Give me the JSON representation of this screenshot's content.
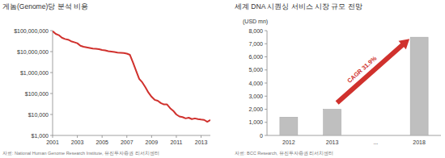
{
  "chart_data": [
    {
      "type": "line",
      "title": "게놈(Genome)당 분석 비용",
      "source": "자료: National Human Genome Research Institute, 유진투자증권 리서치센터",
      "x": [
        2001.0,
        2001.25,
        2001.5,
        2001.75,
        2002.0,
        2002.25,
        2002.5,
        2002.75,
        2003.0,
        2003.25,
        2003.5,
        2003.75,
        2004.0,
        2004.25,
        2004.5,
        2004.75,
        2005.0,
        2005.25,
        2005.5,
        2005.75,
        2006.0,
        2006.25,
        2006.5,
        2006.75,
        2007.0,
        2007.25,
        2007.5,
        2007.75,
        2008.0,
        2008.25,
        2008.5,
        2008.75,
        2009.0,
        2009.25,
        2009.5,
        2009.75,
        2010.0,
        2010.25,
        2010.5,
        2010.75,
        2011.0,
        2011.25,
        2011.5,
        2011.75,
        2012.0,
        2012.25,
        2012.5,
        2012.75,
        2013.0,
        2013.25,
        2013.5,
        2013.75
      ],
      "values": [
        95000000,
        70000000,
        61000000,
        46000000,
        40000000,
        37000000,
        31000000,
        28000000,
        25000000,
        19000000,
        17000000,
        16000000,
        15000000,
        14000000,
        13500000,
        13000000,
        12000000,
        11500000,
        10500000,
        10000000,
        9500000,
        9000000,
        8800000,
        8500000,
        8000000,
        7000000,
        3000000,
        1200000,
        500000,
        340000,
        200000,
        110000,
        70000,
        50000,
        45000,
        35000,
        30000,
        30000,
        20000,
        15000,
        10000,
        8000,
        7500,
        6500,
        7000,
        6000,
        6500,
        6000,
        5700,
        5500,
        4500,
        5500
      ],
      "color": "#d0312d",
      "log": "y",
      "grid": false,
      "xlim": [
        2001,
        2013.75
      ],
      "xticks": [
        2001,
        2003,
        2005,
        2007,
        2009,
        2011,
        2013
      ],
      "ylim": [
        1000,
        100000000
      ],
      "yticks": [
        {
          "value": 1000,
          "label": "$1,000"
        },
        {
          "value": 10000,
          "label": "$10,000"
        },
        {
          "value": 100000,
          "label": "$100,000"
        },
        {
          "value": 1000000,
          "label": "$1,000,000"
        },
        {
          "value": 10000000,
          "label": "$10,000,000"
        },
        {
          "value": 100000000,
          "label": "$100,000,000"
        }
      ]
    },
    {
      "type": "bar",
      "title": "세계 DNA 시퀀싱 서비스 시장 규모 전망",
      "y_label": "(USD mn)",
      "source": "자료: BCC Research, 유진투자증권 리서치센터",
      "annotation": "CAGR 31.9%",
      "categories": [
        "2012",
        "2013",
        "...",
        "2018"
      ],
      "values": [
        1400,
        2000,
        null,
        7500
      ],
      "color": "#bfbfbf",
      "grid": false,
      "ylim": [
        0,
        8000
      ],
      "yticks": [
        0,
        {
          "value": 1000,
          "label": "1,000"
        },
        {
          "value": 2000,
          "label": "2,000"
        },
        {
          "value": 3000,
          "label": "3,000"
        },
        {
          "value": 4000,
          "label": "4,000"
        },
        {
          "value": 5000,
          "label": "5,000"
        },
        {
          "value": 6000,
          "label": "6,000"
        },
        {
          "value": 7000,
          "label": "7,000"
        },
        {
          "value": 8000,
          "label": "8,000"
        }
      ]
    }
  ]
}
